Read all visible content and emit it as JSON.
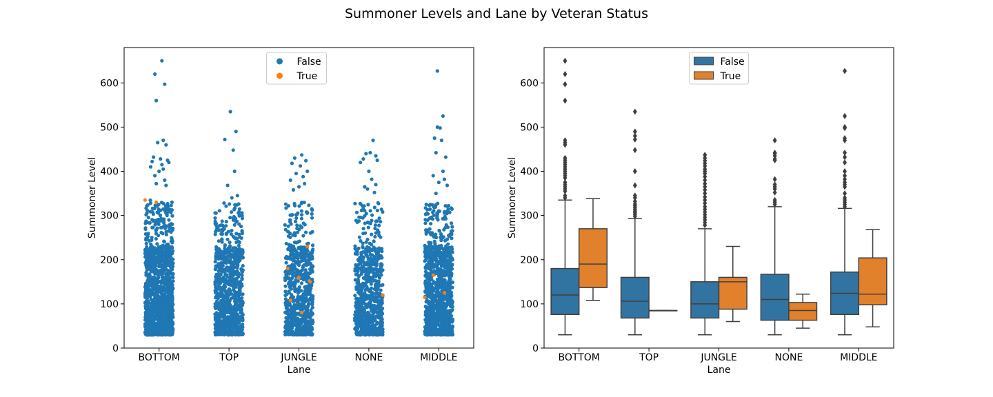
{
  "figure": {
    "title": "Summoner Levels and Lane by Veteran Status"
  },
  "colors": {
    "false_point": "#1f77b4",
    "true_point": "#ff7f0e",
    "false_box": "#3274a1",
    "true_box": "#e1812c",
    "box_line": "#3f3f3f"
  },
  "chart_data": [
    {
      "type": "scatter",
      "subtype": "strip",
      "xlabel": "Lane",
      "ylabel": "Summoner Level",
      "categories": [
        "BOTTOM",
        "TOP",
        "JUNGLE",
        "NONE",
        "MIDDLE"
      ],
      "ylim": [
        0,
        680
      ],
      "yticks": [
        0,
        100,
        200,
        300,
        400,
        500,
        600
      ],
      "legend": {
        "placement": "top-center",
        "entries": [
          "False",
          "True"
        ]
      },
      "series": [
        {
          "name": "False",
          "color": "#1f77b4",
          "approx_points_per_category": [
            1400,
            900,
            700,
            700,
            1100
          ],
          "outlier_points": [
            [
              [
                650,
                620,
                597,
                560,
                470,
                465,
                460,
                432,
                428,
                425,
                422,
                420,
                415,
                410,
                405,
                400,
                390,
                380,
                372,
                368
              ],
              [
                0.2,
                -0.3,
                0.4,
                -0.2,
                0.3,
                -0.1,
                0.5,
                -0.4,
                0.1,
                0.6,
                -0.5,
                0.7,
                0.2,
                -0.6,
                0.3,
                0.0,
                -0.3,
                0.4,
                -0.2,
                0.5
              ]
            ],
            [
              [
                535,
                490,
                472,
                448,
                400,
                368,
                345,
                340
              ],
              [
                0.1,
                0.5,
                -0.3,
                0.3,
                0.4,
                -0.1,
                0.6,
                0.2
              ]
            ],
            [
              [
                437,
                430,
                424,
                418,
                412,
                400,
                395,
                388,
                380,
                372,
                365,
                358
              ],
              [
                0.2,
                -0.3,
                0.5,
                -0.5,
                0.1,
                0.6,
                -0.2,
                0.3,
                -0.6,
                0.4,
                0.0,
                -0.4
              ]
            ],
            [
              [
                470,
                442,
                440,
                435,
                428,
                425,
                420,
                400,
                382,
                370,
                365,
                360,
                352
              ],
              [
                0.3,
                0.1,
                -0.2,
                0.5,
                -0.4,
                0.6,
                -0.6,
                0.0,
                0.2,
                0.5,
                -0.3,
                -0.1,
                0.4
              ]
            ],
            [
              [
                627,
                525,
                500,
                498,
                475,
                470,
                442,
                432,
                400,
                390,
                382,
                375,
                368,
                350
              ],
              [
                -0.1,
                0.3,
                -0.1,
                0.1,
                -0.3,
                0.2,
                -0.2,
                0.5,
                0.3,
                -0.4,
                0.4,
                0.0,
                0.6,
                -0.2
              ]
            ]
          ],
          "dense_range": [
            [
              30,
              335
            ],
            [
              30,
              330
            ],
            [
              30,
              330
            ],
            [
              30,
              330
            ],
            [
              30,
              330
            ]
          ]
        },
        {
          "name": "True",
          "color": "#ff7f0e",
          "points": [
            {
              "category": "BOTTOM",
              "y": 335
            },
            {
              "category": "BOTTOM",
              "y": 330
            },
            {
              "category": "JUNGLE",
              "y": 230
            },
            {
              "category": "JUNGLE",
              "y": 180
            },
            {
              "category": "JUNGLE",
              "y": 160
            },
            {
              "category": "JUNGLE",
              "y": 150
            },
            {
              "category": "JUNGLE",
              "y": 108
            },
            {
              "category": "JUNGLE",
              "y": 80
            },
            {
              "category": "NONE",
              "y": 120
            },
            {
              "category": "MIDDLE",
              "y": 165
            },
            {
              "category": "MIDDLE",
              "y": 125
            },
            {
              "category": "MIDDLE",
              "y": 115
            }
          ]
        }
      ]
    },
    {
      "type": "box",
      "xlabel": "Lane",
      "ylabel": "Summoner Level",
      "categories": [
        "BOTTOM",
        "TOP",
        "JUNGLE",
        "NONE",
        "MIDDLE"
      ],
      "ylim": [
        0,
        680
      ],
      "yticks": [
        0,
        100,
        200,
        300,
        400,
        500,
        600
      ],
      "legend": {
        "placement": "top-center",
        "entries": [
          "False",
          "True"
        ]
      },
      "series": [
        {
          "name": "False",
          "color": "#3274a1",
          "boxes": [
            {
              "whisker_low": 30,
              "q1": 76,
              "median": 120,
              "q3": 180,
              "whisker_high": 335,
              "outliers": [
                650,
                620,
                597,
                560,
                470,
                465,
                460,
                430,
                425,
                420,
                415,
                410,
                405,
                400,
                395,
                390,
                385,
                375,
                370,
                365,
                360,
                355,
                345,
                340
              ]
            },
            {
              "whisker_low": 30,
              "q1": 68,
              "median": 106,
              "q3": 160,
              "whisker_high": 293,
              "outliers": [
                535,
                490,
                480,
                472,
                448,
                400,
                368,
                345,
                340,
                332,
                326,
                322,
                318,
                314,
                310,
                306,
                302,
                298
              ]
            },
            {
              "whisker_low": 30,
              "q1": 68,
              "median": 100,
              "q3": 150,
              "whisker_high": 270,
              "outliers": [
                437,
                430,
                424,
                418,
                412,
                405,
                400,
                395,
                388,
                380,
                372,
                365,
                358,
                350,
                342,
                335,
                328,
                320,
                314,
                308,
                302,
                296,
                290,
                284,
                278
              ]
            },
            {
              "whisker_low": 30,
              "q1": 63,
              "median": 110,
              "q3": 167,
              "whisker_high": 320,
              "outliers": [
                470,
                442,
                440,
                435,
                428,
                425,
                382,
                370,
                365,
                360,
                352,
                335,
                330,
                325
              ]
            },
            {
              "whisker_low": 30,
              "q1": 76,
              "median": 124,
              "q3": 172,
              "whisker_high": 316,
              "outliers": [
                627,
                525,
                500,
                498,
                475,
                470,
                442,
                432,
                420,
                400,
                390,
                382,
                375,
                370,
                365,
                350,
                340,
                335,
                330,
                325,
                320
              ]
            }
          ]
        },
        {
          "name": "True",
          "color": "#e1812c",
          "boxes": [
            {
              "whisker_low": 108,
              "q1": 137,
              "median": 190,
              "q3": 270,
              "whisker_high": 338,
              "outliers": []
            },
            {
              "whisker_low": 85,
              "q1": 85,
              "median": 85,
              "q3": 85,
              "whisker_high": 85,
              "outliers": []
            },
            {
              "whisker_low": 60,
              "q1": 88,
              "median": 150,
              "q3": 160,
              "whisker_high": 230,
              "outliers": []
            },
            {
              "whisker_low": 45,
              "q1": 63,
              "median": 85,
              "q3": 103,
              "whisker_high": 122,
              "outliers": []
            },
            {
              "whisker_low": 48,
              "q1": 98,
              "median": 122,
              "q3": 204,
              "whisker_high": 268,
              "outliers": []
            }
          ]
        }
      ]
    }
  ]
}
